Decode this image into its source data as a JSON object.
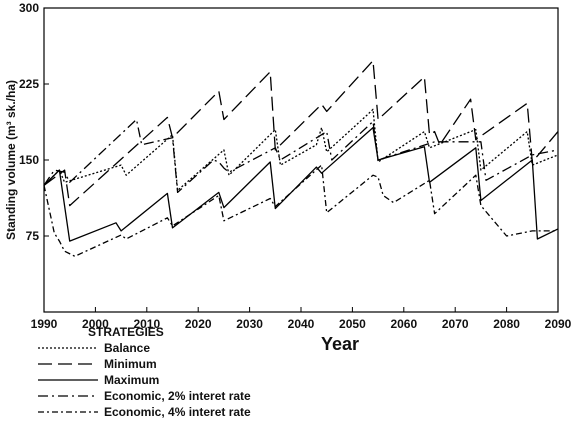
{
  "chart_data": {
    "type": "line",
    "xlabel": "Year",
    "ylabel": "Standing volume (m³ sk./ha)",
    "xlim": [
      1990,
      2090
    ],
    "ylim": [
      0,
      300
    ],
    "x_ticks": [
      1990,
      2000,
      2010,
      2020,
      2030,
      2040,
      2050,
      2060,
      2070,
      2080,
      2090
    ],
    "y_ticks": [
      75,
      150,
      225,
      300
    ],
    "grid": false,
    "legend": {
      "title": "STRATEGIES",
      "placement": "below-left"
    },
    "series": [
      {
        "name": "Balance",
        "dash": "2,2",
        "points": [
          [
            1990,
            125
          ],
          [
            1993,
            140
          ],
          [
            1994,
            128
          ],
          [
            2005,
            145
          ],
          [
            2006,
            135
          ],
          [
            2015,
            175
          ],
          [
            2016,
            120
          ],
          [
            2025,
            160
          ],
          [
            2026,
            135
          ],
          [
            2035,
            180
          ],
          [
            2036,
            145
          ],
          [
            2043,
            165
          ],
          [
            2044,
            182
          ],
          [
            2045,
            158
          ],
          [
            2053,
            195
          ],
          [
            2054,
            200
          ],
          [
            2055,
            148
          ],
          [
            2064,
            178
          ],
          [
            2065,
            162
          ],
          [
            2074,
            180
          ],
          [
            2075,
            140
          ],
          [
            2084,
            178
          ],
          [
            2085,
            145
          ],
          [
            2090,
            155
          ]
        ]
      },
      {
        "name": "Minimum",
        "dash": "14,6",
        "points": [
          [
            1990,
            125
          ],
          [
            1994,
            140
          ],
          [
            1995,
            105
          ],
          [
            2014,
            192
          ],
          [
            2015,
            172
          ],
          [
            2024,
            218
          ],
          [
            2025,
            190
          ],
          [
            2034,
            237
          ],
          [
            2035,
            160
          ],
          [
            2044,
            205
          ],
          [
            2045,
            198
          ],
          [
            2054,
            248
          ],
          [
            2055,
            190
          ],
          [
            2064,
            232
          ],
          [
            2065,
            175
          ],
          [
            2066,
            178
          ],
          [
            2067,
            165
          ],
          [
            2073,
            210
          ],
          [
            2074,
            170
          ],
          [
            2084,
            206
          ],
          [
            2085,
            148
          ],
          [
            2090,
            178
          ]
        ]
      },
      {
        "name": "Maximum",
        "dash": "",
        "points": [
          [
            1990,
            125
          ],
          [
            1993,
            140
          ],
          [
            1995,
            70
          ],
          [
            2004,
            88
          ],
          [
            2005,
            80
          ],
          [
            2014,
            117
          ],
          [
            2015,
            83
          ],
          [
            2024,
            118
          ],
          [
            2025,
            103
          ],
          [
            2034,
            148
          ],
          [
            2035,
            102
          ],
          [
            2043,
            143
          ],
          [
            2044,
            137
          ],
          [
            2054,
            182
          ],
          [
            2055,
            150
          ],
          [
            2064,
            163
          ],
          [
            2065,
            128
          ],
          [
            2074,
            162
          ],
          [
            2075,
            110
          ],
          [
            2085,
            150
          ],
          [
            2086,
            72
          ],
          [
            2090,
            82
          ]
        ]
      },
      {
        "name": "Economic, 2% interet rate",
        "dash": "10,4,2,4",
        "points": [
          [
            1990,
            125
          ],
          [
            1992,
            140
          ],
          [
            1994,
            138
          ],
          [
            1995,
            128
          ],
          [
            2008,
            190
          ],
          [
            2009,
            165
          ],
          [
            2015,
            172
          ],
          [
            2016,
            118
          ],
          [
            2023,
            150
          ],
          [
            2024,
            148
          ],
          [
            2025,
            142
          ],
          [
            2026,
            138
          ],
          [
            2035,
            162
          ],
          [
            2036,
            150
          ],
          [
            2045,
            178
          ],
          [
            2046,
            150
          ],
          [
            2054,
            188
          ],
          [
            2055,
            150
          ],
          [
            2066,
            168
          ],
          [
            2075,
            168
          ],
          [
            2076,
            130
          ],
          [
            2085,
            155
          ],
          [
            2090,
            160
          ]
        ]
      },
      {
        "name": "Economic, 4% interet rate",
        "dash": "6,3,2,3",
        "points": [
          [
            1990,
            125
          ],
          [
            1992,
            78
          ],
          [
            1993,
            70
          ],
          [
            1994,
            60
          ],
          [
            1996,
            55
          ],
          [
            2005,
            76
          ],
          [
            2006,
            72
          ],
          [
            2014,
            93
          ],
          [
            2015,
            85
          ],
          [
            2024,
            115
          ],
          [
            2025,
            90
          ],
          [
            2034,
            112
          ],
          [
            2035,
            104
          ],
          [
            2044,
            145
          ],
          [
            2045,
            98
          ],
          [
            2054,
            135
          ],
          [
            2055,
            133
          ],
          [
            2056,
            115
          ],
          [
            2058,
            108
          ],
          [
            2065,
            130
          ],
          [
            2066,
            97
          ],
          [
            2074,
            135
          ],
          [
            2075,
            105
          ],
          [
            2080,
            75
          ],
          [
            2085,
            80
          ],
          [
            2090,
            80
          ]
        ]
      }
    ]
  }
}
